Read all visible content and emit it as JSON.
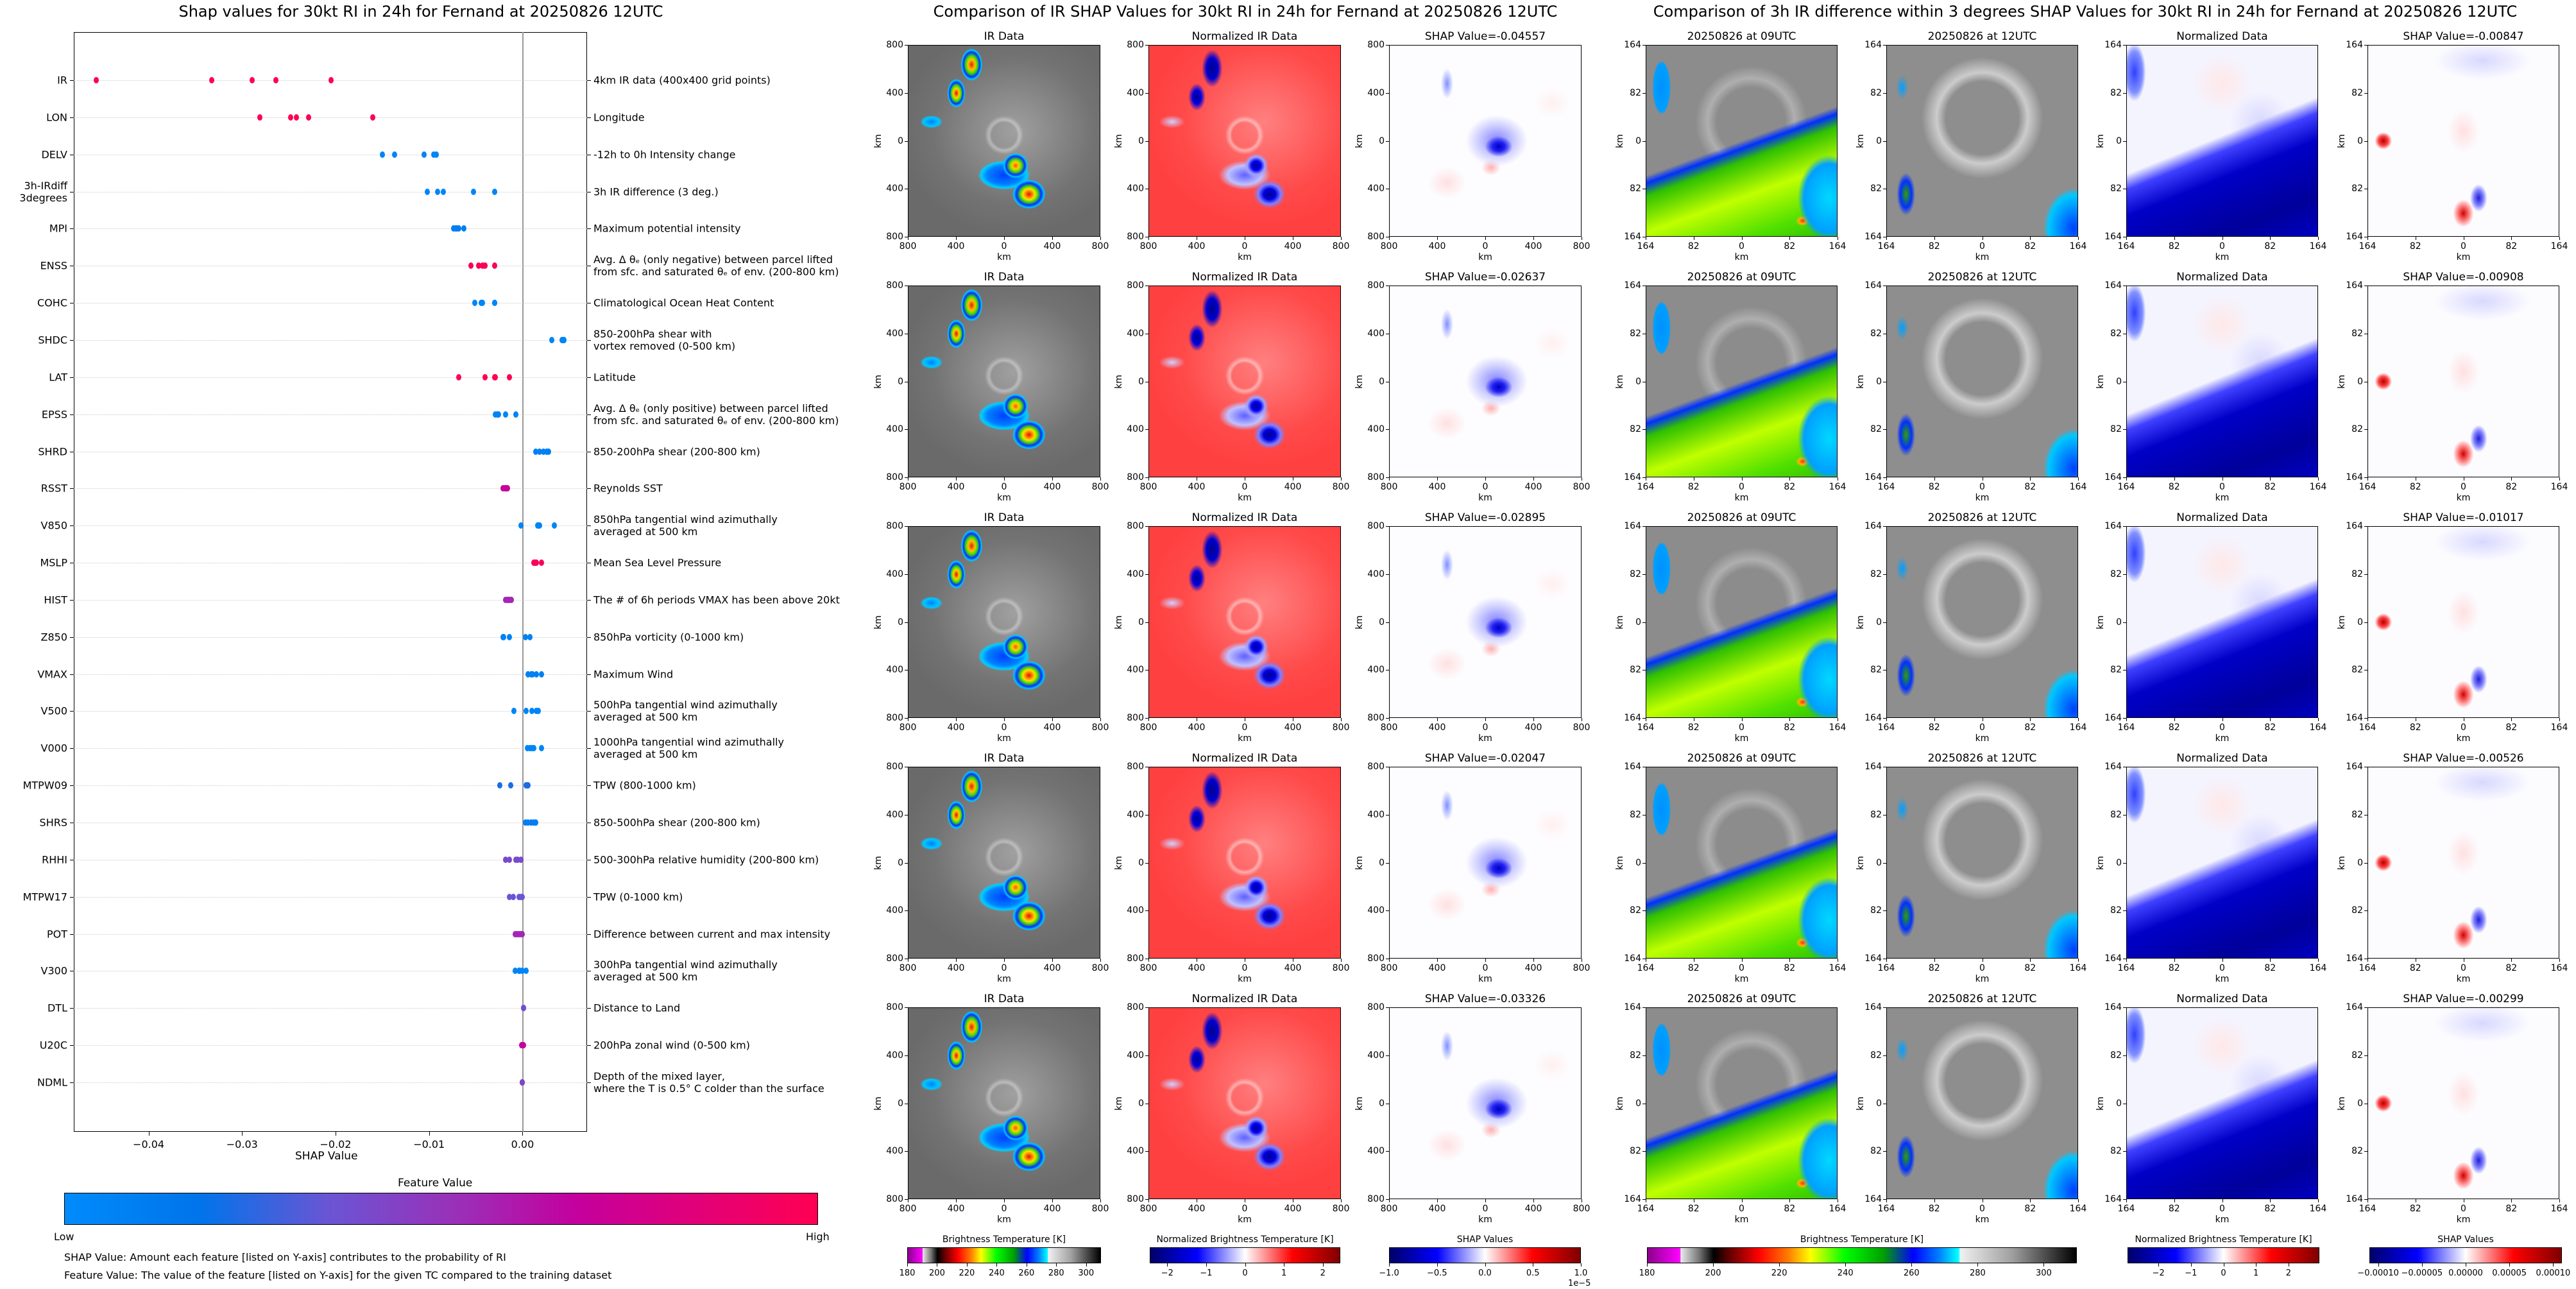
{
  "left": {
    "title": "Shap values for 30kt RI in 24h for Fernand at 20250826 12UTC",
    "xlabel": "SHAP Value",
    "xlim": [
      -0.048,
      0.0069
    ],
    "xticks": [
      -0.04,
      -0.03,
      -0.02,
      -0.01,
      0.0
    ],
    "xtick_labels": [
      "−0.04",
      "−0.03",
      "−0.02",
      "−0.01",
      "0.00"
    ],
    "features": [
      {
        "code": "IR",
        "desc": "4km IR data (400x400 grid points)",
        "fv": 1.0,
        "shap": [
          -0.04557,
          -0.03326,
          -0.02895,
          -0.02637,
          -0.02047
        ]
      },
      {
        "code": "LON",
        "desc": "Longitude",
        "fv": 1.0,
        "shap": [
          -0.0281,
          -0.0248,
          -0.0242,
          -0.0229,
          -0.016
        ]
      },
      {
        "code": "DELV",
        "desc": "-12h to 0h Intensity change",
        "fv": 0.05,
        "shap": [
          -0.015,
          -0.0137,
          -0.0105,
          -0.0095,
          -0.0092
        ]
      },
      {
        "code": "3h-IRdiff\n3degrees",
        "desc": "3h IR difference (3 deg.)",
        "fv": 0.05,
        "shap": [
          -0.01017,
          -0.00908,
          -0.00847,
          -0.00526,
          -0.00299
        ]
      },
      {
        "code": "MPI",
        "desc": "Maximum potential intensity",
        "fv": 0.1,
        "shap": [
          -0.0074,
          -0.0072,
          -0.007,
          -0.0068,
          -0.0063
        ]
      },
      {
        "code": "ENSS",
        "desc": "Avg. Δ θₑ (only negative) between parcel lifted\nfrom sfc. and saturated θₑ of env. (200-800 km)",
        "fv": 0.97,
        "shap": [
          -0.0055,
          -0.0047,
          -0.0043,
          -0.004,
          -0.003
        ]
      },
      {
        "code": "COHC",
        "desc": "Climatological Ocean Heat Content",
        "fv": 0.05,
        "shap": [
          -0.0051,
          -0.0044,
          -0.0043,
          -0.003,
          -0.003
        ]
      },
      {
        "code": "SHDC",
        "desc": "850-200hPa shear with\nvortex removed (0-500 km)",
        "fv": 0.05,
        "shap": [
          0.0031,
          0.0042,
          0.0043,
          0.0044,
          0.0044
        ]
      },
      {
        "code": "LAT",
        "desc": "Latitude",
        "fv": 1.0,
        "shap": [
          -0.0068,
          -0.004,
          -0.003,
          -0.0029,
          -0.0014
        ]
      },
      {
        "code": "EPSS",
        "desc": "Avg. Δ θₑ (only positive) between parcel lifted\nfrom sfc. and saturated θₑ of env. (200-800 km)",
        "fv": 0.05,
        "shap": [
          -0.0029,
          -0.0027,
          -0.0026,
          -0.0018,
          -0.0007
        ]
      },
      {
        "code": "SHRD",
        "desc": "850-200hPa shear (200-800 km)",
        "fv": 0.08,
        "shap": [
          0.0014,
          0.0018,
          0.0022,
          0.0026,
          0.0028
        ]
      },
      {
        "code": "RSST",
        "desc": "Reynolds SST",
        "fv": 0.7,
        "shap": [
          -0.0021,
          -0.0019,
          -0.0018,
          -0.0017,
          -0.0016
        ]
      },
      {
        "code": "V850",
        "desc": "850hPa tangential wind azimuthally\naveraged at 500 km",
        "fv": 0.05,
        "shap": [
          -0.0002,
          0.0016,
          0.0017,
          0.0018,
          0.0034
        ]
      },
      {
        "code": "MSLP",
        "desc": "Mean Sea Level Pressure",
        "fv": 0.97,
        "shap": [
          0.0012,
          0.0013,
          0.0014,
          0.0015,
          0.002
        ]
      },
      {
        "code": "HIST",
        "desc": "The # of 6h periods VMAX has been above 20kt",
        "fv": 0.55,
        "shap": [
          -0.0018,
          -0.0016,
          -0.0015,
          -0.0014,
          -0.0012
        ]
      },
      {
        "code": "Z850",
        "desc": "850hPa vorticity (0-1000 km)",
        "fv": 0.08,
        "shap": [
          -0.0021,
          -0.002,
          -0.0014,
          0.0003,
          0.0008
        ]
      },
      {
        "code": "VMAX",
        "desc": "Maximum Wind",
        "fv": 0.08,
        "shap": [
          0.0006,
          0.0009,
          0.0011,
          0.0015,
          0.002
        ]
      },
      {
        "code": "V500",
        "desc": "500hPa tangential wind azimuthally\naveraged at 500 km",
        "fv": 0.05,
        "shap": [
          -0.0009,
          0.0004,
          0.001,
          0.0015,
          0.0017
        ]
      },
      {
        "code": "V000",
        "desc": "1000hPa tangential wind azimuthally\naveraged at 500 km",
        "fv": 0.05,
        "shap": [
          0.0005,
          0.0008,
          0.001,
          0.0012,
          0.002
        ]
      },
      {
        "code": "MTPW09",
        "desc": "TPW (800-1000 km)",
        "fv": 0.22,
        "shap": [
          -0.0024,
          -0.0013,
          0.0004,
          0.0005,
          0.0006
        ]
      },
      {
        "code": "SHRS",
        "desc": "850-500hPa shear (200-800 km)",
        "fv": 0.1,
        "shap": [
          0.0003,
          0.0006,
          0.0009,
          0.0012,
          0.0014
        ]
      },
      {
        "code": "RHHI",
        "desc": "500-300hPa relative humidity (200-800 km)",
        "fv": 0.4,
        "shap": [
          -0.0018,
          -0.0014,
          -0.0007,
          -0.0005,
          -0.0002
        ]
      },
      {
        "code": "MTPW17",
        "desc": "TPW (0-1000 km)",
        "fv": 0.35,
        "shap": [
          -0.0014,
          -0.001,
          -0.0004,
          -0.0002,
          0.0
        ]
      },
      {
        "code": "POT",
        "desc": "Difference between current and max intensity",
        "fv": 0.55,
        "shap": [
          -0.0008,
          -0.0006,
          -0.0004,
          -0.0002,
          0.0
        ]
      },
      {
        "code": "V300",
        "desc": "300hPa tangential wind azimuthally\naveraged at 500 km",
        "fv": 0.05,
        "shap": [
          -0.0008,
          -0.0004,
          -0.0003,
          0.0,
          0.0004
        ]
      },
      {
        "code": "DTL",
        "desc": "Distance to Land",
        "fv": 0.38,
        "shap": [
          0.0001,
          0.0001,
          0.0001,
          0.0001,
          0.0001
        ]
      },
      {
        "code": "U20C",
        "desc": "200hPa zonal wind (0-500 km)",
        "fv": 0.68,
        "shap": [
          -0.0001,
          0.0,
          0.0,
          0.0,
          0.0001
        ]
      },
      {
        "code": "NDML",
        "desc": "Depth of the mixed layer,\nwhere the T is 0.5° C colder than the surface",
        "fv": 0.42,
        "shap": [
          0.0,
          0.0,
          0.0,
          0.0,
          0.0
        ]
      }
    ],
    "colorbar": {
      "title": "Feature Value",
      "low": "Low",
      "high": "High"
    },
    "notes": [
      "SHAP Value: Amount each feature [listed on Y-axis] contributes to the probability of RI",
      "Feature Value: The value of the feature [listed on Y-axis] for the given TC compared to the training dataset"
    ],
    "colors": {
      "low": "#008bfb",
      "high": "#ff0052",
      "zero_line": "#999999"
    }
  },
  "ir_group": {
    "title": "Comparison of IR SHAP Values for 30kt RI in 24h for Fernand at 20250826 12UTC",
    "col_titles": [
      "IR Data",
      "Normalized IR Data"
    ],
    "shap_titles": [
      "SHAP Value=-0.04557",
      "SHAP Value=-0.02637",
      "SHAP Value=-0.02895",
      "SHAP Value=-0.02047",
      "SHAP Value=-0.03326"
    ],
    "ticks": [
      "800",
      "400",
      "0",
      "400",
      "800"
    ],
    "axis_label": "km",
    "colorbars": [
      {
        "label": "Brightness Temperature [K]",
        "range": [
          180,
          310
        ],
        "ticks": [
          180,
          200,
          220,
          240,
          260,
          280,
          300
        ],
        "tick_labels": [
          "180",
          "200",
          "220",
          "240",
          "260",
          "280",
          "300"
        ]
      },
      {
        "label": "Normalized Brightness Temperature [K]",
        "range": [
          -2.45,
          2.45
        ],
        "ticks": [
          -2,
          -1,
          0,
          1,
          2
        ],
        "tick_labels": [
          "−2",
          "−1",
          "0",
          "1",
          "2"
        ]
      },
      {
        "label": "SHAP Values",
        "range": [
          -1.0,
          1.0
        ],
        "ticks": [
          -1.0,
          -0.5,
          0.0,
          0.5,
          1.0
        ],
        "tick_labels": [
          "−1.0",
          "−0.5",
          "0.0",
          "0.5",
          "1.0"
        ],
        "offset": "1e−5"
      }
    ]
  },
  "diff_group": {
    "title": "Comparison of 3h IR difference within 3 degrees SHAP Values for 30kt RI in 24h for Fernand at 20250826 12UTC",
    "col_titles": [
      "20250826 at 09UTC",
      "20250826 at 12UTC",
      "Normalized Data"
    ],
    "shap_titles": [
      "SHAP Value=-0.00847",
      "SHAP Value=-0.00908",
      "SHAP Value=-0.01017",
      "SHAP Value=-0.00526",
      "SHAP Value=-0.00299"
    ],
    "ticks": [
      "164",
      "82",
      "0",
      "82",
      "164"
    ],
    "axis_label": "km",
    "colorbars": [
      {
        "label": "Brightness Temperature [K]",
        "range": [
          180,
          310
        ],
        "ticks": [
          180,
          200,
          220,
          240,
          260,
          280,
          300
        ],
        "tick_labels": [
          "180",
          "200",
          "220",
          "240",
          "260",
          "280",
          "300"
        ]
      },
      {
        "label": "Normalized Brightness Temperature [K]",
        "range": [
          -2.95,
          2.95
        ],
        "ticks": [
          -2,
          -1,
          0,
          1,
          2
        ],
        "tick_labels": [
          "−2",
          "−1",
          "0",
          "1",
          "2"
        ]
      },
      {
        "label": "SHAP Values",
        "range": [
          -0.00011,
          0.00011
        ],
        "ticks": [
          -0.0001,
          -5e-05,
          0,
          5e-05,
          0.0001
        ],
        "tick_labels": [
          "−0.00010",
          "−0.00005",
          "0.00000",
          "0.00005",
          "0.00010"
        ]
      }
    ]
  }
}
